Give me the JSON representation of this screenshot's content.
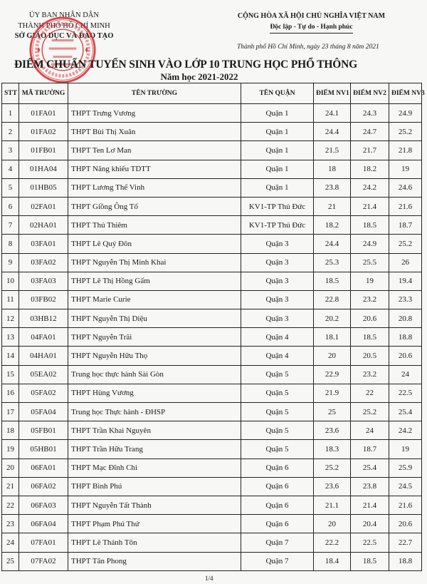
{
  "agency": {
    "line1": "ỦY BAN NHÂN DÂN",
    "line2": "THÀNH PHỐ HỒ CHÍ MINH",
    "line3": "SỞ GIÁO DỤC VÀ ĐÀO TẠO"
  },
  "national": {
    "line1": "CỘNG HÒA XÃ HỘI CHỦ NGHĨA VIỆT NAM",
    "motto": "Độc lập - Tự do - Hạnh phúc"
  },
  "date": "Thành phố Hồ Chí Minh, ngày 23 tháng 8 năm 2021",
  "stamp": {
    "ring": "CỘNG HÒA XÃ HỘI CHỦ NGHĨA VIỆT NAM ★ THÀNH PHỐ HỒ CHÍ MINH ★",
    "center": [
      "SỞ",
      "GIÁO DỤC",
      "VÀ",
      "ĐÀO TẠO"
    ],
    "color": "#d8262b"
  },
  "title": "ĐIỂM CHUẨN TUYỂN SINH VÀO LỚP 10 TRUNG HỌC PHỔ THÔNG",
  "subtitle": "Năm học 2021-2022",
  "table": {
    "headers": [
      "STT",
      "MÃ TRƯỜNG",
      "TÊN TRƯỜNG",
      "TÊN QUẬN",
      "ĐIỂM NV1",
      "ĐIỂM NV2",
      "ĐIỂM NV3"
    ],
    "rows": [
      [
        "1",
        "01FA01",
        "THPT Trưng Vương",
        "Quận 1",
        "24.1",
        "24.3",
        "24.9"
      ],
      [
        "2",
        "01FA02",
        "THPT Bùi Thị Xuân",
        "Quận 1",
        "24.4",
        "24.7",
        "25.2"
      ],
      [
        "3",
        "01FB01",
        "THPT Ten Lơ Man",
        "Quận 1",
        "21.5",
        "21.7",
        "21.8"
      ],
      [
        "4",
        "01HA04",
        "THPT Năng khiếu TDTT",
        "Quận 1",
        "18",
        "18.2",
        "19"
      ],
      [
        "5",
        "01HB05",
        "THPT Lương Thế Vinh",
        "Quận 1",
        "23.8",
        "24.2",
        "24.6"
      ],
      [
        "6",
        "02FA01",
        "THPT Giồng Ông Tố",
        "KV1-TP Thủ Đức",
        "21",
        "21.4",
        "21.6"
      ],
      [
        "7",
        "02HA01",
        "THPT Thủ Thiêm",
        "KV1-TP Thủ Đức",
        "18.2",
        "18.5",
        "18.7"
      ],
      [
        "8",
        "03FA01",
        "THPT Lê Quý Đôn",
        "Quận 3",
        "24.4",
        "24.9",
        "25.2"
      ],
      [
        "9",
        "03FA02",
        "THPT Nguyễn Thị Minh Khai",
        "Quận 3",
        "25.3",
        "25.5",
        "26"
      ],
      [
        "10",
        "03FA03",
        "THPT Lê Thị Hồng Gấm",
        "Quận 3",
        "18.5",
        "19",
        "19.4"
      ],
      [
        "11",
        "03FB02",
        "THPT Marie Curie",
        "Quận 3",
        "22.8",
        "23.2",
        "23.3"
      ],
      [
        "12",
        "03HB12",
        "THPT Nguyễn Thị Diệu",
        "Quận 3",
        "20.2",
        "20.6",
        "20.8"
      ],
      [
        "13",
        "04FA01",
        "THPT Nguyễn Trãi",
        "Quận 4",
        "18.1",
        "18.5",
        "18.8"
      ],
      [
        "14",
        "04HA01",
        "THPT Nguyễn Hữu Thọ",
        "Quận 4",
        "20",
        "20.5",
        "20.6"
      ],
      [
        "15",
        "05EA02",
        "Trung học thực hành Sài Gòn",
        "Quận 5",
        "22.9",
        "23.2",
        "24"
      ],
      [
        "16",
        "05FA02",
        "THPT Hùng Vương",
        "Quận 5",
        "21.9",
        "22",
        "22.5"
      ],
      [
        "17",
        "05FA04",
        "Trung học Thực hành - ĐHSP",
        "Quận 5",
        "25",
        "25.2",
        "25.4"
      ],
      [
        "18",
        "05FB01",
        "THPT Trần Khai Nguyên",
        "Quận 5",
        "23.6",
        "24",
        "24.2"
      ],
      [
        "19",
        "05HB01",
        "THPT Trần Hữu Trang",
        "Quận 5",
        "18.3",
        "18.7",
        "19"
      ],
      [
        "20",
        "06FA01",
        "THPT Mạc Đĩnh Chi",
        "Quận 6",
        "25.2",
        "25.4",
        "25.9"
      ],
      [
        "21",
        "06FA02",
        "THPT Bình Phú",
        "Quận 6",
        "23.6",
        "23.8",
        "24.5"
      ],
      [
        "22",
        "06FA03",
        "THPT Nguyễn Tất Thành",
        "Quận 6",
        "21.1",
        "21.4",
        "21.6"
      ],
      [
        "23",
        "06FA04",
        "THPT Phạm Phú Thứ",
        "Quận 6",
        "20",
        "20.4",
        "20.6"
      ],
      [
        "24",
        "07FA01",
        "THPT Lê Thánh Tôn",
        "Quận 7",
        "22.2",
        "22.5",
        "22.7"
      ],
      [
        "25",
        "07FA02",
        "THPT Tân Phong",
        "Quận 7",
        "18.4",
        "18.5",
        "18.8"
      ]
    ]
  },
  "page_number": "1/4"
}
